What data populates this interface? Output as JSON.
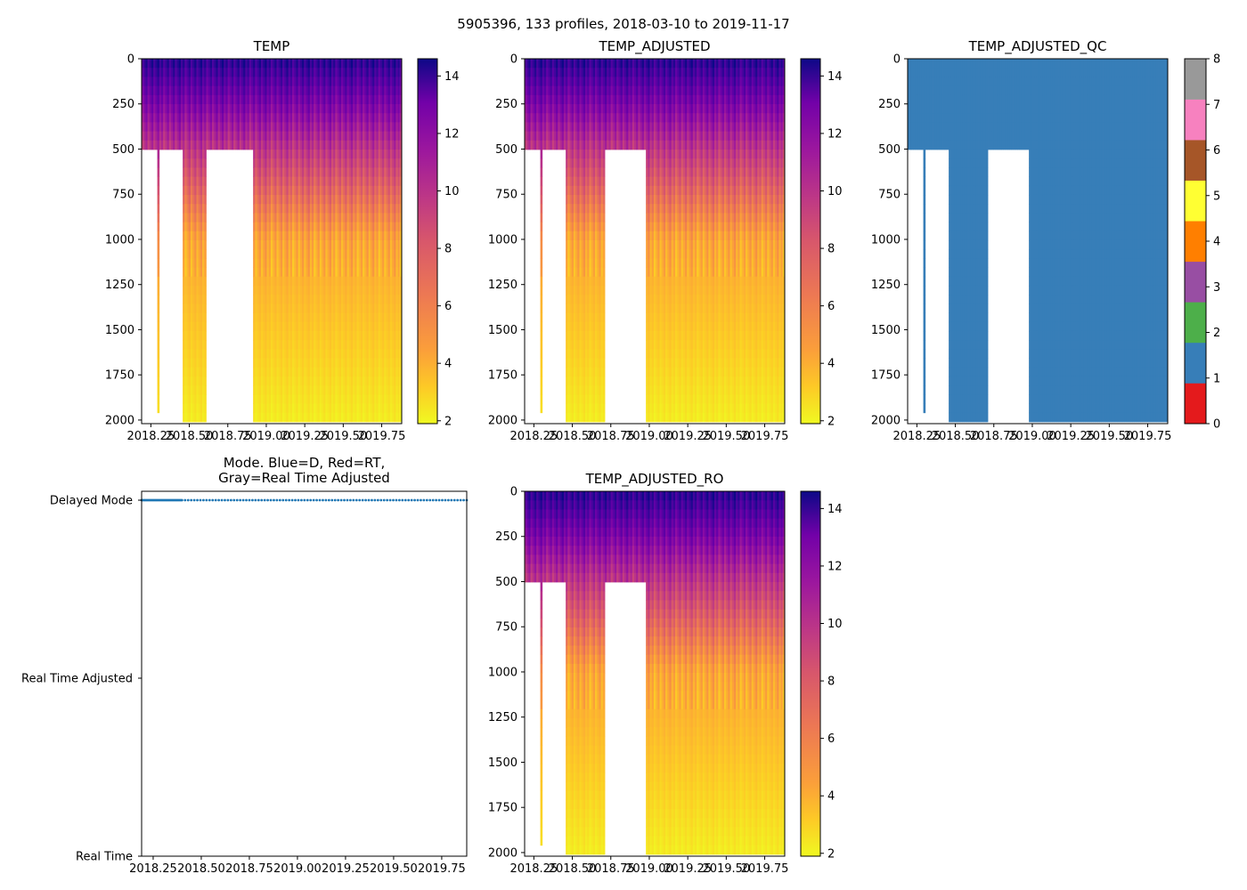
{
  "figure_title": "5905396, 133 profiles, 2018-03-10 to 2019-11-17",
  "chart_data": [
    {
      "id": "temp",
      "type": "heatmap",
      "title": "TEMP",
      "xlim": [
        2018.19,
        2019.88
      ],
      "ylim": [
        2020,
        0
      ],
      "xticks": [
        2018.25,
        2018.5,
        2018.75,
        2019.0,
        2019.25,
        2019.5,
        2019.75
      ],
      "xtick_labels": [
        "2018.25",
        "2018.50",
        "2018.75",
        "2019.00",
        "2019.25",
        "2019.50",
        "2019.75"
      ],
      "yticks": [
        0,
        250,
        500,
        750,
        1000,
        1250,
        1500,
        1750,
        2000
      ],
      "ytick_labels": [
        "0",
        "250",
        "500",
        "750",
        "1000",
        "1250",
        "1500",
        "1750",
        "2000"
      ],
      "colormap": "plasma_r",
      "colorbar": {
        "range": [
          1.9,
          14.6
        ],
        "ticks": [
          2,
          4,
          6,
          8,
          10,
          12,
          14
        ],
        "tick_labels": [
          "2",
          "4",
          "6",
          "8",
          "10",
          "12",
          "14"
        ]
      },
      "temperature_profile": {
        "surface": 14.0,
        "at_500": 9.0,
        "at_1000": 4.5,
        "at_2000": 2.3
      },
      "missing_ranges": [
        {
          "x": [
            2018.19,
            2018.46
          ],
          "below_depth": 520,
          "except": [
            2018.29,
            2018.31
          ]
        },
        {
          "x": [
            2018.61,
            2018.91
          ],
          "below_depth": 510
        }
      ]
    },
    {
      "id": "temp_adjusted",
      "type": "heatmap",
      "title": "TEMP_ADJUSTED",
      "xlim": [
        2018.19,
        2019.88
      ],
      "ylim": [
        2020,
        0
      ],
      "xticks": [
        2018.25,
        2018.5,
        2018.75,
        2019.0,
        2019.25,
        2019.5,
        2019.75
      ],
      "xtick_labels": [
        "2018.25",
        "2018.50",
        "2018.75",
        "2019.00",
        "2019.25",
        "2019.50",
        "2019.75"
      ],
      "yticks": [
        0,
        250,
        500,
        750,
        1000,
        1250,
        1500,
        1750,
        2000
      ],
      "ytick_labels": [
        "0",
        "250",
        "500",
        "750",
        "1000",
        "1250",
        "1500",
        "1750",
        "2000"
      ],
      "colormap": "plasma_r",
      "colorbar": {
        "range": [
          1.9,
          14.6
        ],
        "ticks": [
          2,
          4,
          6,
          8,
          10,
          12,
          14
        ],
        "tick_labels": [
          "2",
          "4",
          "6",
          "8",
          "10",
          "12",
          "14"
        ]
      },
      "temperature_profile": {
        "surface": 14.0,
        "at_500": 9.0,
        "at_1000": 4.5,
        "at_2000": 2.3
      },
      "missing_ranges": [
        {
          "x": [
            2018.19,
            2018.46
          ],
          "below_depth": 520,
          "except": [
            2018.29,
            2018.31
          ]
        },
        {
          "x": [
            2018.71,
            2018.98
          ],
          "below_depth": 510
        }
      ]
    },
    {
      "id": "temp_adjusted_qc",
      "type": "heatmap",
      "title": "TEMP_ADJUSTED_QC",
      "xlim": [
        2018.19,
        2019.88
      ],
      "ylim": [
        2020,
        0
      ],
      "xticks": [
        2018.25,
        2018.5,
        2018.75,
        2019.0,
        2019.25,
        2019.5,
        2019.75
      ],
      "xtick_labels": [
        "2018.25",
        "2018.50",
        "2018.75",
        "2019.00",
        "2019.25",
        "2019.50",
        "2019.75"
      ],
      "yticks": [
        0,
        250,
        500,
        750,
        1000,
        1250,
        1500,
        1750,
        2000
      ],
      "ytick_labels": [
        "0",
        "250",
        "500",
        "750",
        "1000",
        "1250",
        "1500",
        "1750",
        "2000"
      ],
      "qc_value": 1,
      "qc_colors": [
        "#e41a1c",
        "#377eb8",
        "#4daf4a",
        "#984ea3",
        "#ff7f00",
        "#ffff33",
        "#a65628",
        "#f781bf",
        "#999999"
      ],
      "colorbar": {
        "range": [
          0,
          8
        ],
        "ticks": [
          0,
          1,
          2,
          3,
          4,
          5,
          6,
          7,
          8
        ],
        "tick_labels": [
          "0",
          "1",
          "2",
          "3",
          "4",
          "5",
          "6",
          "7",
          "8"
        ]
      },
      "missing_ranges": [
        {
          "x": [
            2018.19,
            2018.46
          ],
          "below_depth": 520,
          "except": [
            2018.29,
            2018.31
          ]
        },
        {
          "x": [
            2018.71,
            2018.98
          ],
          "below_depth": 510
        }
      ]
    },
    {
      "id": "mode",
      "type": "scatter",
      "title": "Mode. Blue=D, Red=RT,",
      "title_line2": "Gray=Real Time Adjusted",
      "xlim": [
        2018.19,
        2019.88
      ],
      "xticks": [
        2018.25,
        2018.5,
        2018.75,
        2019.0,
        2019.25,
        2019.5,
        2019.75
      ],
      "xtick_labels": [
        "2018.25",
        "2018.50",
        "2018.75",
        "2019.00",
        "2019.25",
        "2019.50",
        "2019.75"
      ],
      "ylim": [
        0,
        2.05
      ],
      "yticks": [
        0,
        1,
        2
      ],
      "ytick_labels": [
        "Real Time",
        "Real Time Adjusted",
        "Delayed Mode"
      ],
      "series": [
        {
          "name": "Delayed Mode",
          "color": "#1f77b4",
          "y": 2,
          "x_start": 2018.19,
          "x_end": 2019.88,
          "dense_until": 2018.4,
          "count": 133
        }
      ]
    },
    {
      "id": "temp_adjusted_ro",
      "type": "heatmap",
      "title": "TEMP_ADJUSTED_RO",
      "xlim": [
        2018.19,
        2019.88
      ],
      "ylim": [
        2020,
        0
      ],
      "xticks": [
        2018.25,
        2018.5,
        2018.75,
        2019.0,
        2019.25,
        2019.5,
        2019.75
      ],
      "xtick_labels": [
        "2018.25",
        "2018.50",
        "2018.75",
        "2019.00",
        "2019.25",
        "2019.50",
        "2019.75"
      ],
      "yticks": [
        0,
        250,
        500,
        750,
        1000,
        1250,
        1500,
        1750,
        2000
      ],
      "ytick_labels": [
        "0",
        "250",
        "500",
        "750",
        "1000",
        "1250",
        "1500",
        "1750",
        "2000"
      ],
      "colormap": "plasma_r",
      "colorbar": {
        "range": [
          1.9,
          14.6
        ],
        "ticks": [
          2,
          4,
          6,
          8,
          10,
          12,
          14
        ],
        "tick_labels": [
          "2",
          "4",
          "6",
          "8",
          "10",
          "12",
          "14"
        ]
      },
      "temperature_profile": {
        "surface": 14.0,
        "at_500": 9.0,
        "at_1000": 4.5,
        "at_2000": 2.3
      },
      "missing_ranges": [
        {
          "x": [
            2018.19,
            2018.46
          ],
          "below_depth": 520,
          "except": [
            2018.29,
            2018.31
          ]
        },
        {
          "x": [
            2018.71,
            2018.98
          ],
          "below_depth": 510
        }
      ]
    }
  ]
}
